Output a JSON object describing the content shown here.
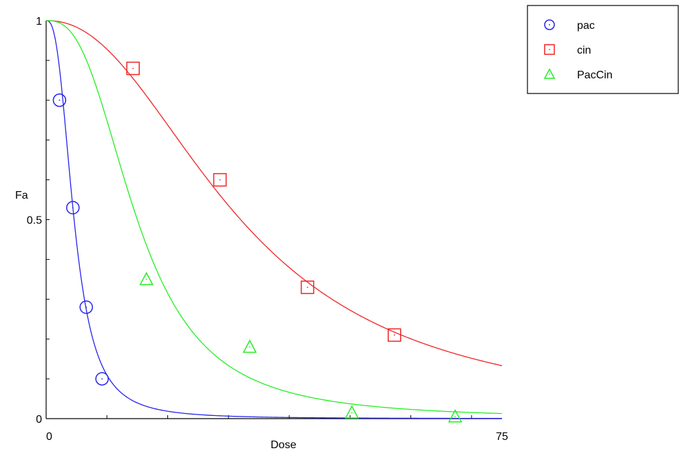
{
  "chart_data": {
    "type": "scatter",
    "xlabel": "Dose",
    "ylabel": "Fa",
    "xlim": [
      0,
      75
    ],
    "ylim": [
      0,
      1
    ],
    "x_tick_labels": [
      {
        "value": 0,
        "text": "0"
      },
      {
        "value": 75,
        "text": "75"
      }
    ],
    "y_tick_labels": [
      {
        "value": 0,
        "text": "0"
      },
      {
        "value": 0.5,
        "text": "0.5"
      },
      {
        "value": 1,
        "text": "1"
      }
    ],
    "grid": false,
    "legend_position": "top-right",
    "series": [
      {
        "name": "pac",
        "marker": "circle",
        "color": "#2222ee",
        "points": [
          [
            2.2,
            0.8
          ],
          [
            4.4,
            0.53
          ],
          [
            6.6,
            0.28
          ],
          [
            9.2,
            0.1
          ]
        ],
        "fit": {
          "dm": 4.6,
          "m": 2.7
        }
      },
      {
        "name": "cin",
        "marker": "square",
        "color": "#ee2222",
        "points": [
          [
            14.3,
            0.88
          ],
          [
            28.6,
            0.6
          ],
          [
            43.0,
            0.33
          ],
          [
            57.3,
            0.21
          ]
        ],
        "fit": {
          "dm": 32.0,
          "m": 2.2
        }
      },
      {
        "name": "PacCin",
        "marker": "triangle",
        "color": "#22ee22",
        "points": [
          [
            16.5,
            0.35
          ],
          [
            33.5,
            0.18
          ],
          [
            50.3,
            0.015
          ],
          [
            67.3,
            0.005
          ]
        ],
        "fit": {
          "dm": 15.0,
          "m": 2.7
        }
      }
    ]
  }
}
